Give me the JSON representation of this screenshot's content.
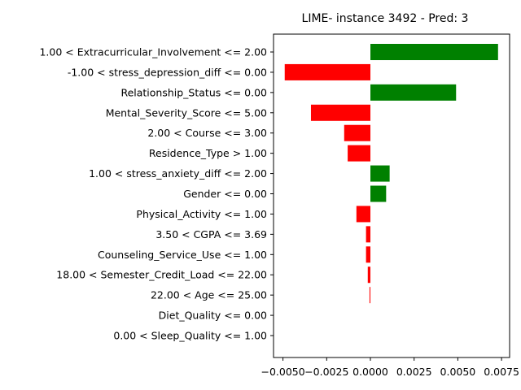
{
  "chart_data": {
    "type": "bar",
    "orientation": "horizontal",
    "title": "LIME- instance 3492 - Pred: 3",
    "xlabel": "",
    "ylabel": "",
    "xlim": [
      -0.0055,
      0.0078
    ],
    "grid": false,
    "colors": {
      "positive": "#008000",
      "negative": "#ff0000"
    },
    "x_ticks": [
      {
        "value": -0.005,
        "label": "−0.0050"
      },
      {
        "value": -0.0025,
        "label": "−0.0025"
      },
      {
        "value": 0.0,
        "label": "0.0000"
      },
      {
        "value": 0.0025,
        "label": "0.0025"
      },
      {
        "value": 0.005,
        "label": "0.0050"
      },
      {
        "value": 0.0075,
        "label": "0.0075"
      }
    ],
    "categories": [
      "1.00 < Extracurricular_Involvement <= 2.00",
      "-1.00 < stress_depression_diff <= 0.00",
      "Relationship_Status <= 0.00",
      "Mental_Severity_Score <= 5.00",
      "2.00 < Course <= 3.00",
      "Residence_Type > 1.00",
      "1.00 < stress_anxiety_diff <= 2.00",
      "Gender <= 0.00",
      "Physical_Activity <= 1.00",
      "3.50 < CGPA <= 3.69",
      "Counseling_Service_Use <= 1.00",
      "18.00 < Semester_Credit_Load <= 22.00",
      "22.00 < Age <= 25.00",
      "Diet_Quality <= 0.00",
      "0.00 < Sleep_Quality <= 1.00"
    ],
    "values": [
      0.0073,
      -0.0049,
      0.0049,
      -0.0034,
      -0.0015,
      -0.0013,
      0.0011,
      0.0009,
      -0.0008,
      -0.00025,
      -0.00025,
      -0.00015,
      -5e-05,
      0.0,
      0.0
    ]
  }
}
